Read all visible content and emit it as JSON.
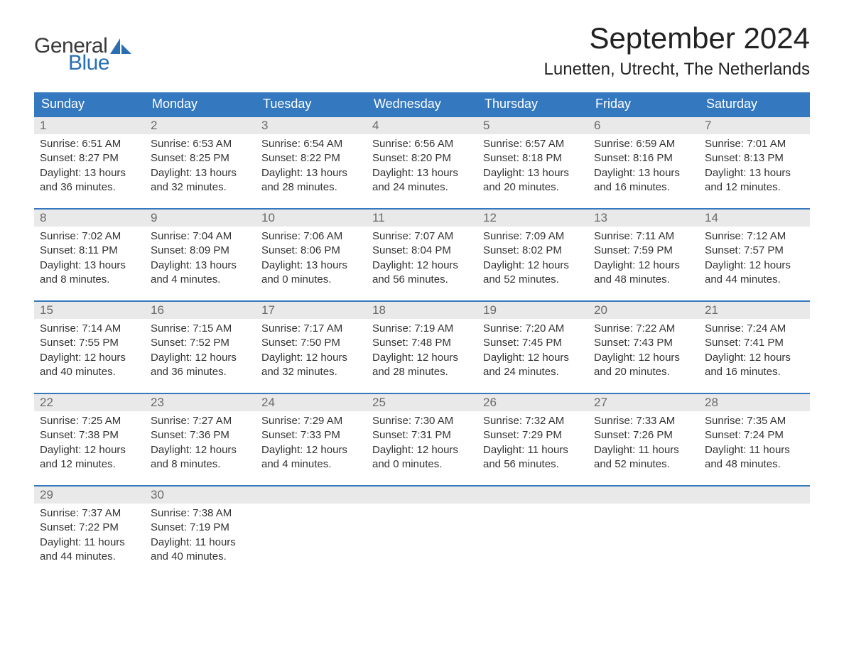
{
  "logo": {
    "general": "General",
    "blue": "Blue",
    "shape_color": "#2a6fb3"
  },
  "title": "September 2024",
  "subtitle": "Lunetten, Utrecht, The Netherlands",
  "colors": {
    "header_bg": "#3478bf",
    "header_text": "#ffffff",
    "week_border": "#3478bf",
    "daynum_bg": "#e9e9e9",
    "daynum_text": "#6a6a6a",
    "body_text": "#333333",
    "background": "#ffffff"
  },
  "typography": {
    "title_fontsize": 42,
    "subtitle_fontsize": 24,
    "header_fontsize": 18,
    "daynum_fontsize": 17,
    "body_fontsize": 15,
    "logo_fontsize": 30
  },
  "layout": {
    "columns": 7,
    "rows": 5,
    "cell_min_height": 128
  },
  "headers": [
    "Sunday",
    "Monday",
    "Tuesday",
    "Wednesday",
    "Thursday",
    "Friday",
    "Saturday"
  ],
  "labels": {
    "sunrise": "Sunrise:",
    "sunset": "Sunset:",
    "daylight": "Daylight:"
  },
  "days": [
    {
      "n": "1",
      "sunrise": "6:51 AM",
      "sunset": "8:27 PM",
      "dh": "13",
      "dm": "36"
    },
    {
      "n": "2",
      "sunrise": "6:53 AM",
      "sunset": "8:25 PM",
      "dh": "13",
      "dm": "32"
    },
    {
      "n": "3",
      "sunrise": "6:54 AM",
      "sunset": "8:22 PM",
      "dh": "13",
      "dm": "28"
    },
    {
      "n": "4",
      "sunrise": "6:56 AM",
      "sunset": "8:20 PM",
      "dh": "13",
      "dm": "24"
    },
    {
      "n": "5",
      "sunrise": "6:57 AM",
      "sunset": "8:18 PM",
      "dh": "13",
      "dm": "20"
    },
    {
      "n": "6",
      "sunrise": "6:59 AM",
      "sunset": "8:16 PM",
      "dh": "13",
      "dm": "16"
    },
    {
      "n": "7",
      "sunrise": "7:01 AM",
      "sunset": "8:13 PM",
      "dh": "13",
      "dm": "12"
    },
    {
      "n": "8",
      "sunrise": "7:02 AM",
      "sunset": "8:11 PM",
      "dh": "13",
      "dm": "8"
    },
    {
      "n": "9",
      "sunrise": "7:04 AM",
      "sunset": "8:09 PM",
      "dh": "13",
      "dm": "4"
    },
    {
      "n": "10",
      "sunrise": "7:06 AM",
      "sunset": "8:06 PM",
      "dh": "13",
      "dm": "0"
    },
    {
      "n": "11",
      "sunrise": "7:07 AM",
      "sunset": "8:04 PM",
      "dh": "12",
      "dm": "56"
    },
    {
      "n": "12",
      "sunrise": "7:09 AM",
      "sunset": "8:02 PM",
      "dh": "12",
      "dm": "52"
    },
    {
      "n": "13",
      "sunrise": "7:11 AM",
      "sunset": "7:59 PM",
      "dh": "12",
      "dm": "48"
    },
    {
      "n": "14",
      "sunrise": "7:12 AM",
      "sunset": "7:57 PM",
      "dh": "12",
      "dm": "44"
    },
    {
      "n": "15",
      "sunrise": "7:14 AM",
      "sunset": "7:55 PM",
      "dh": "12",
      "dm": "40"
    },
    {
      "n": "16",
      "sunrise": "7:15 AM",
      "sunset": "7:52 PM",
      "dh": "12",
      "dm": "36"
    },
    {
      "n": "17",
      "sunrise": "7:17 AM",
      "sunset": "7:50 PM",
      "dh": "12",
      "dm": "32"
    },
    {
      "n": "18",
      "sunrise": "7:19 AM",
      "sunset": "7:48 PM",
      "dh": "12",
      "dm": "28"
    },
    {
      "n": "19",
      "sunrise": "7:20 AM",
      "sunset": "7:45 PM",
      "dh": "12",
      "dm": "24"
    },
    {
      "n": "20",
      "sunrise": "7:22 AM",
      "sunset": "7:43 PM",
      "dh": "12",
      "dm": "20"
    },
    {
      "n": "21",
      "sunrise": "7:24 AM",
      "sunset": "7:41 PM",
      "dh": "12",
      "dm": "16"
    },
    {
      "n": "22",
      "sunrise": "7:25 AM",
      "sunset": "7:38 PM",
      "dh": "12",
      "dm": "12"
    },
    {
      "n": "23",
      "sunrise": "7:27 AM",
      "sunset": "7:36 PM",
      "dh": "12",
      "dm": "8"
    },
    {
      "n": "24",
      "sunrise": "7:29 AM",
      "sunset": "7:33 PM",
      "dh": "12",
      "dm": "4"
    },
    {
      "n": "25",
      "sunrise": "7:30 AM",
      "sunset": "7:31 PM",
      "dh": "12",
      "dm": "0"
    },
    {
      "n": "26",
      "sunrise": "7:32 AM",
      "sunset": "7:29 PM",
      "dh": "11",
      "dm": "56"
    },
    {
      "n": "27",
      "sunrise": "7:33 AM",
      "sunset": "7:26 PM",
      "dh": "11",
      "dm": "52"
    },
    {
      "n": "28",
      "sunrise": "7:35 AM",
      "sunset": "7:24 PM",
      "dh": "11",
      "dm": "48"
    },
    {
      "n": "29",
      "sunrise": "7:37 AM",
      "sunset": "7:22 PM",
      "dh": "11",
      "dm": "44"
    },
    {
      "n": "30",
      "sunrise": "7:38 AM",
      "sunset": "7:19 PM",
      "dh": "11",
      "dm": "40"
    }
  ]
}
